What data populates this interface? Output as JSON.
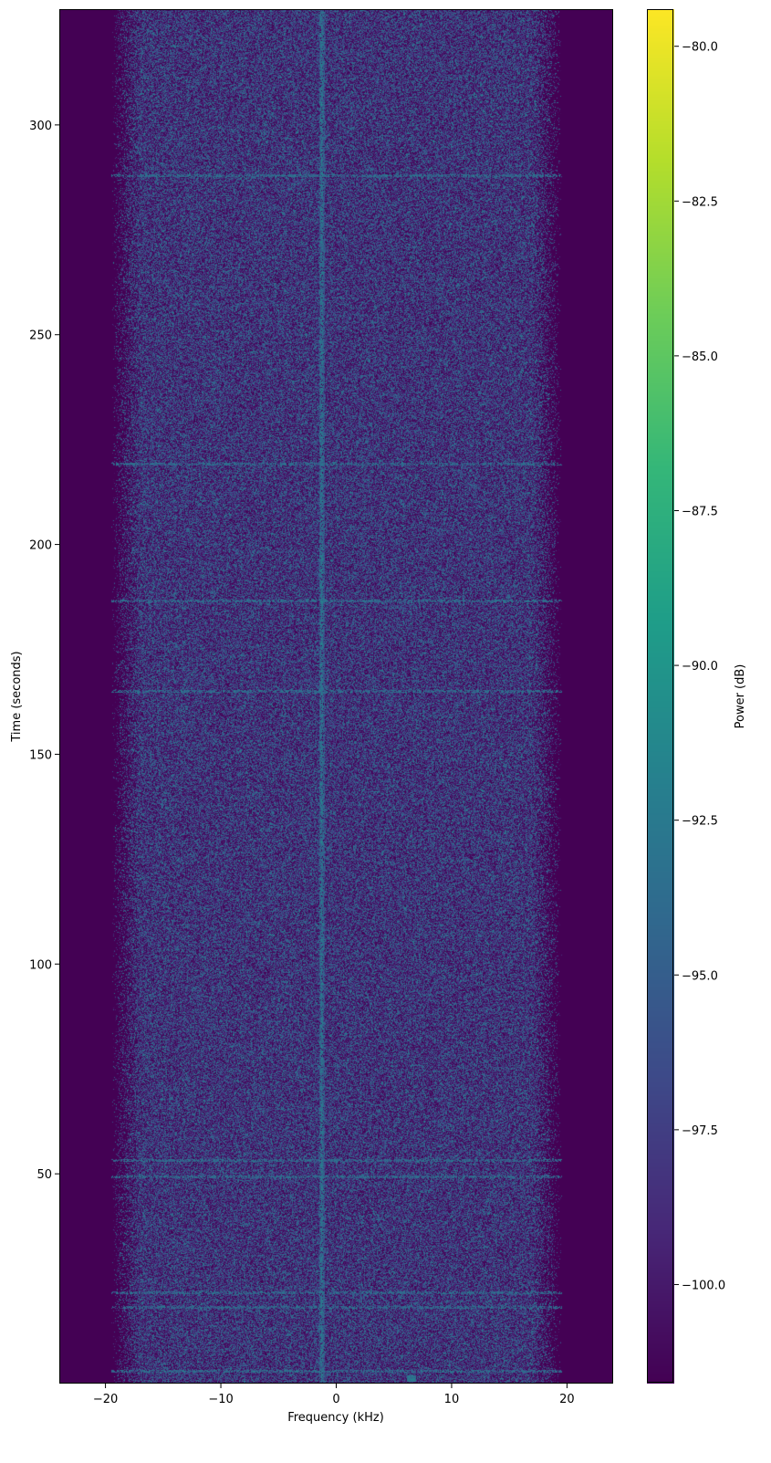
{
  "chart_data": {
    "type": "heatmap",
    "subtype": "spectrogram",
    "title": "",
    "xlabel": "Frequency (kHz)",
    "ylabel": "Time (seconds)",
    "xlim": [
      -24,
      24
    ],
    "ylim": [
      0,
      327.6
    ],
    "xticks": [
      -20,
      -10,
      0,
      10,
      20
    ],
    "xtick_labels": [
      "−20",
      "−10",
      "0",
      "10",
      "20"
    ],
    "yticks": [
      50,
      100,
      150,
      200,
      250,
      300
    ],
    "ytick_labels": [
      "50",
      "100",
      "150",
      "200",
      "250",
      "300"
    ],
    "grid": false,
    "colormap": "viridis",
    "colorbar": {
      "label": "Power (dB)",
      "range": [
        -101.6,
        -79.4
      ],
      "ticks": [
        -80.0,
        -82.5,
        -85.0,
        -87.5,
        -90.0,
        -92.5,
        -95.0,
        -97.5,
        -100.0
      ],
      "tick_labels": [
        "−80.0",
        "−82.5",
        "−85.0",
        "−87.5",
        "−90.0",
        "−92.5",
        "−95.0",
        "−97.5",
        "−100.0"
      ]
    },
    "noise_band_khz": [
      -19,
      19
    ],
    "noise_floor_db": -101.6,
    "noise_band_db": [
      -101.5,
      -93
    ],
    "carrier": {
      "frequency_khz": -1.3,
      "power_db": -90.5,
      "time_range_s": [
        0,
        327.6
      ]
    },
    "broadband_bursts_s": [
      3.0,
      18.3,
      21.7,
      49.3,
      53.3,
      165.2,
      186.7,
      219.3,
      288.0
    ],
    "burst_power_db": -92,
    "small_feature": {
      "frequency_khz": 6.5,
      "time_s": 1.0
    },
    "colors": {
      "min": "#440154",
      "max": "#fde725"
    }
  }
}
